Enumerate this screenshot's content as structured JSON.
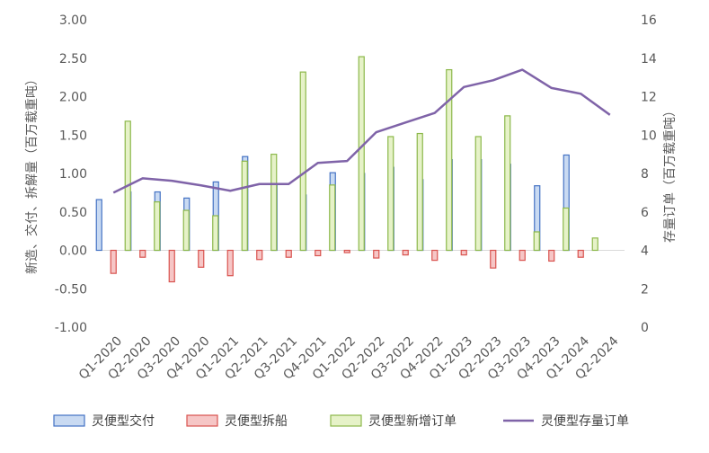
{
  "chart_data": {
    "type": "bar",
    "categories": [
      "Q1-2020",
      "Q2-2020",
      "Q3-2020",
      "Q4-2020",
      "Q1-2021",
      "Q2-2021",
      "Q3-2021",
      "Q4-2021",
      "Q1-2022",
      "Q2-2022",
      "Q3-2022",
      "Q4-2022",
      "Q1-2023",
      "Q2-2023",
      "Q3-2023",
      "Q4-2023",
      "Q1-2024",
      "Q2-2024"
    ],
    "series": [
      {
        "name": "灵便型交付",
        "type": "bar",
        "axis": "left",
        "color": "#4472C4",
        "values": [
          0.66,
          0.76,
          0.76,
          0.68,
          0.89,
          1.22,
          0.85,
          0.72,
          1.01,
          1.0,
          1.08,
          0.92,
          1.18,
          1.18,
          1.12,
          0.84,
          1.24,
          null
        ]
      },
      {
        "name": "灵便型拆船",
        "type": "bar",
        "axis": "left",
        "color": "#E05A5A",
        "values": [
          -0.3,
          -0.09,
          -0.41,
          -0.22,
          -0.33,
          -0.12,
          -0.09,
          -0.07,
          -0.03,
          -0.1,
          -0.06,
          -0.13,
          -0.06,
          -0.23,
          -0.13,
          -0.14,
          -0.09,
          null
        ]
      },
      {
        "name": "灵便型新增订单",
        "type": "bar",
        "axis": "left",
        "color": "#92C353",
        "values": [
          1.68,
          0.63,
          0.52,
          0.45,
          1.16,
          1.25,
          2.32,
          0.85,
          2.52,
          1.48,
          1.52,
          2.35,
          1.48,
          1.75,
          0.24,
          0.55,
          0.16,
          null
        ]
      },
      {
        "name": "灵便型存量订单",
        "type": "line",
        "axis": "right",
        "color": "#7F63A8",
        "values": [
          7.0,
          7.75,
          7.62,
          7.38,
          7.1,
          7.45,
          7.45,
          8.55,
          8.65,
          10.15,
          10.65,
          11.15,
          12.5,
          12.85,
          13.4,
          12.45,
          12.15,
          11.05
        ]
      }
    ],
    "y_left": {
      "label": "新造、交付、拆解量（百万载重吨）",
      "min": -1.0,
      "max": 3.0,
      "step": 0.5,
      "ticks": [
        "-1.00",
        "-0.50",
        "0.00",
        "0.50",
        "1.00",
        "1.50",
        "2.00",
        "2.50",
        "3.00"
      ]
    },
    "y_right": {
      "label": "存量订单（百万载重吨）",
      "min": 0,
      "max": 16,
      "step": 2,
      "ticks": [
        "0",
        "2",
        "4",
        "6",
        "8",
        "10",
        "12",
        "14",
        "16"
      ]
    },
    "legend_position": "bottom",
    "grid": false
  }
}
